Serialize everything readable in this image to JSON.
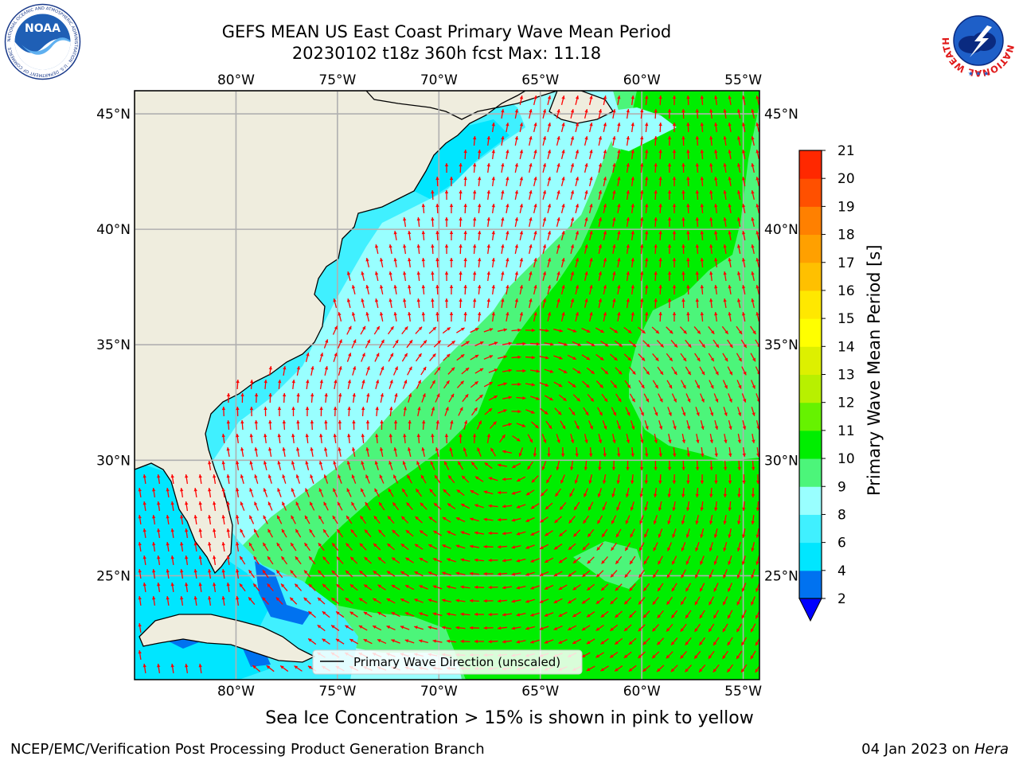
{
  "header": {
    "title_line1": "GEFS MEAN US East Coast Primary Wave Mean Period",
    "title_line2": "20230102 t18z 360h fcst   Max: 11.18"
  },
  "logos": {
    "left": "NOAA",
    "left_ring_text": "NATIONAL OCEANIC AND ATMOSPHERIC ADMINISTRATION · U.S. DEPARTMENT OF COMMERCE",
    "right_ring_text": "NATIONAL WEATHER SERVICE"
  },
  "map": {
    "lon_ticks": [
      "80°W",
      "75°W",
      "70°W",
      "65°W",
      "60°W",
      "55°W"
    ],
    "lat_ticks": [
      "45°N",
      "40°N",
      "35°N",
      "30°N",
      "25°N"
    ],
    "lon_values": [
      -80,
      -75,
      -70,
      -65,
      -60,
      -55
    ],
    "lat_values": [
      45,
      40,
      35,
      30,
      25
    ],
    "extent": {
      "lon_min": -85,
      "lon_max": -54.2,
      "lat_min": 20.5,
      "lat_max": 46
    },
    "legend_label": "Primary Wave Direction (unscaled)",
    "arrow_color": "#ff0000",
    "land_color": "#efedde"
  },
  "colorbar": {
    "title": "Primary Wave Mean Period [s]",
    "tick_labels": [
      "2",
      "4",
      "6",
      "8",
      "9",
      "10",
      "11",
      "12",
      "13",
      "14",
      "15",
      "16",
      "17",
      "18",
      "19",
      "20",
      "21"
    ],
    "colors": [
      "#0072f0",
      "#00e6ff",
      "#40f0ff",
      "#99ffff",
      "#4cf57a",
      "#00ee00",
      "#66f200",
      "#b8f000",
      "#ddf000",
      "#ffff00",
      "#ffe800",
      "#ffc000",
      "#ffa000",
      "#ff8000",
      "#ff5000",
      "#ff2800",
      "#ff0000"
    ],
    "extend_color": "#0000ff"
  },
  "notes": {
    "sea_ice": "Sea Ice Concentration > 15% is shown in pink to yellow",
    "credit": "NCEP/EMC/Verification Post Processing Product Generation Branch",
    "date": "04 Jan 2023 on",
    "machine": "Hera"
  }
}
